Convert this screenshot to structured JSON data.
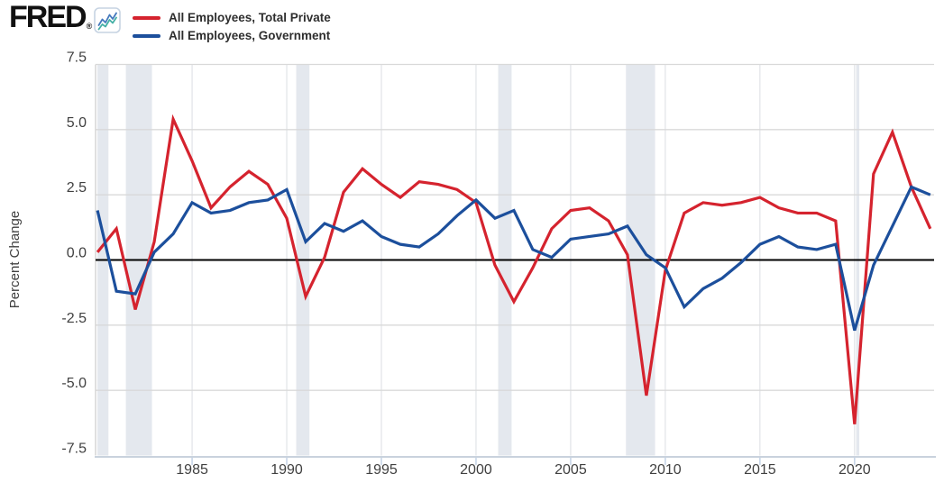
{
  "header": {
    "logo_text": "FRED",
    "registered_mark": "®",
    "logo_icon": "line-chart-icon",
    "legend": [
      {
        "label": "All Employees, Total Private"
      },
      {
        "label": "All Employees, Government"
      }
    ]
  },
  "chart_data": {
    "type": "line",
    "title": "",
    "xlabel": "",
    "ylabel": "Percent Change",
    "x_ticks": [
      1985,
      1990,
      1995,
      2000,
      2005,
      2010,
      2015,
      2020
    ],
    "y_ticks": [
      7.5,
      5.0,
      2.5,
      0.0,
      -2.5,
      -5.0,
      -7.5
    ],
    "xlim": [
      1979.9,
      2024.2
    ],
    "ylim": [
      -7.5,
      7.5
    ],
    "grid": true,
    "legend_position": "top-left",
    "years": [
      1980,
      1981,
      1982,
      1983,
      1984,
      1985,
      1986,
      1987,
      1988,
      1989,
      1990,
      1991,
      1992,
      1993,
      1994,
      1995,
      1996,
      1997,
      1998,
      1999,
      2000,
      2001,
      2002,
      2003,
      2004,
      2005,
      2006,
      2007,
      2008,
      2009,
      2010,
      2011,
      2012,
      2013,
      2014,
      2015,
      2016,
      2017,
      2018,
      2019,
      2020,
      2021,
      2022,
      2023,
      2024
    ],
    "series": [
      {
        "name": "All Employees, Total Private",
        "color": "#d5232e",
        "values": [
          0.3,
          1.2,
          -1.9,
          0.7,
          5.4,
          3.8,
          2.0,
          2.8,
          3.4,
          2.9,
          1.6,
          -1.4,
          0.1,
          2.6,
          3.5,
          2.9,
          2.4,
          3.0,
          2.9,
          2.7,
          2.2,
          -0.2,
          -1.6,
          -0.3,
          1.2,
          1.9,
          2.0,
          1.5,
          0.2,
          -5.2,
          -0.4,
          1.8,
          2.2,
          2.1,
          2.2,
          2.4,
          2.0,
          1.8,
          1.8,
          1.5,
          -6.3,
          3.3,
          4.9,
          2.8,
          1.2
        ]
      },
      {
        "name": "All Employees, Government",
        "color": "#1c4f9c",
        "values": [
          1.9,
          -1.2,
          -1.3,
          0.3,
          1.0,
          2.2,
          1.8,
          1.9,
          2.2,
          2.3,
          2.7,
          0.7,
          1.4,
          1.1,
          1.5,
          0.9,
          0.6,
          0.5,
          1.0,
          1.7,
          2.3,
          1.6,
          1.9,
          0.4,
          0.1,
          0.8,
          0.9,
          1.0,
          1.3,
          0.2,
          -0.3,
          -1.8,
          -1.1,
          -0.7,
          -0.1,
          0.6,
          0.9,
          0.5,
          0.4,
          0.6,
          -2.7,
          -0.2,
          1.3,
          2.8,
          2.5
        ]
      }
    ],
    "zero_line": true,
    "recession_bands": [
      [
        1980.0,
        1980.58
      ],
      [
        1981.5,
        1982.88
      ],
      [
        1990.5,
        1991.2
      ],
      [
        2001.17,
        2001.88
      ],
      [
        2007.92,
        2009.46
      ],
      [
        2020.08,
        2020.25
      ]
    ],
    "colors": {
      "recession_band": "#e4e8ee",
      "gridline": "#d9d9d9",
      "vertical_gridline": "#dbdee3",
      "zero_line": "#000000",
      "axis_line": "#c9d2dd",
      "left_border": "#cfcfcf",
      "tick": "#c3d2e6",
      "tick_label": "#404040"
    }
  }
}
